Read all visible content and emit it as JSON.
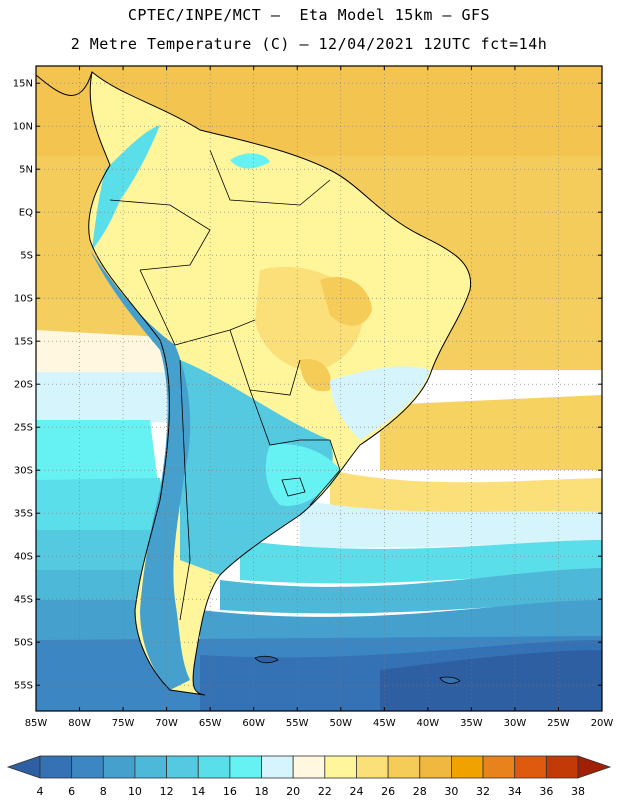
{
  "header": {
    "line1": "CPTEC/INPE/MCT –  Eta Model 15km – GFS",
    "line2": "2 Metre Temperature (C) – 12/04/2021 12UTC fct=14h"
  },
  "map": {
    "lon_range": [
      -85,
      -20
    ],
    "lat_range": [
      -58,
      17
    ],
    "lat_ticks": [
      "15N",
      "10N",
      "5N",
      "EQ",
      "5S",
      "10S",
      "15S",
      "20S",
      "25S",
      "30S",
      "35S",
      "40S",
      "45S",
      "50S",
      "55S"
    ],
    "lon_ticks": [
      "85W",
      "80W",
      "75W",
      "70W",
      "65W",
      "60W",
      "55W",
      "50W",
      "45W",
      "40W",
      "35W",
      "30W",
      "25W",
      "20W"
    ]
  },
  "colorbar": {
    "labels": [
      "4",
      "6",
      "8",
      "10",
      "12",
      "14",
      "16",
      "18",
      "20",
      "22",
      "24",
      "26",
      "28",
      "30",
      "32",
      "34",
      "36",
      "38"
    ],
    "colors": [
      "#2e5fa3",
      "#3472b5",
      "#3b86c3",
      "#45a0ce",
      "#4db8d8",
      "#54c9e0",
      "#5adeea",
      "#66f2f2",
      "#d6f4fb",
      "#fff7df",
      "#fff59a",
      "#fbe07a",
      "#f6cc58",
      "#f0b83e",
      "#f0a300",
      "#e8821c",
      "#dd5a0e",
      "#c23a08",
      "#a02006"
    ]
  },
  "chart_data": {
    "type": "heatmap",
    "title": "2 Metre Temperature (C)",
    "model": "Eta Model 15km – GFS",
    "run": "12/04/2021 12UTC",
    "forecast": "fct=14h",
    "units": "C",
    "color_levels": [
      4,
      6,
      8,
      10,
      12,
      14,
      16,
      18,
      20,
      22,
      24,
      26,
      28,
      30,
      32,
      34,
      36,
      38
    ],
    "xlabel": "",
    "ylabel": ""
  }
}
